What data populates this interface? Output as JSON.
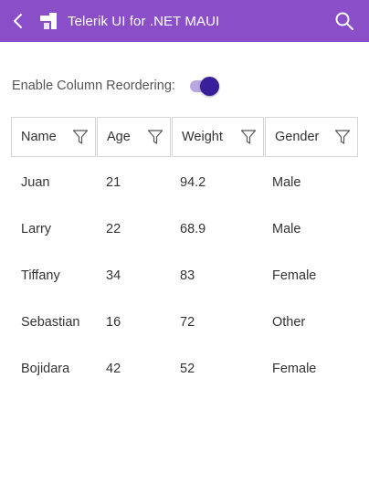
{
  "appbar": {
    "title": "Telerik UI for .NET MAUI",
    "color": "#8a4fc8"
  },
  "options": {
    "reorder_label": "Enable Column Reordering:",
    "reorder_enabled": true
  },
  "grid": {
    "columns": [
      "Name",
      "Age",
      "Weight",
      "Gender"
    ],
    "rows": [
      [
        "Juan",
        "21",
        "94.2",
        "Male"
      ],
      [
        "Larry",
        "22",
        "68.9",
        "Male"
      ],
      [
        "Tiffany",
        "34",
        "83",
        "Female"
      ],
      [
        "Sebastian",
        "16",
        "72",
        "Other"
      ],
      [
        "Bojidara",
        "42",
        "52",
        "Female"
      ]
    ]
  },
  "icons": {
    "back": "chevron-left-icon",
    "logo": "telerik-logo-icon",
    "search": "search-icon",
    "filter": "filter-icon"
  }
}
